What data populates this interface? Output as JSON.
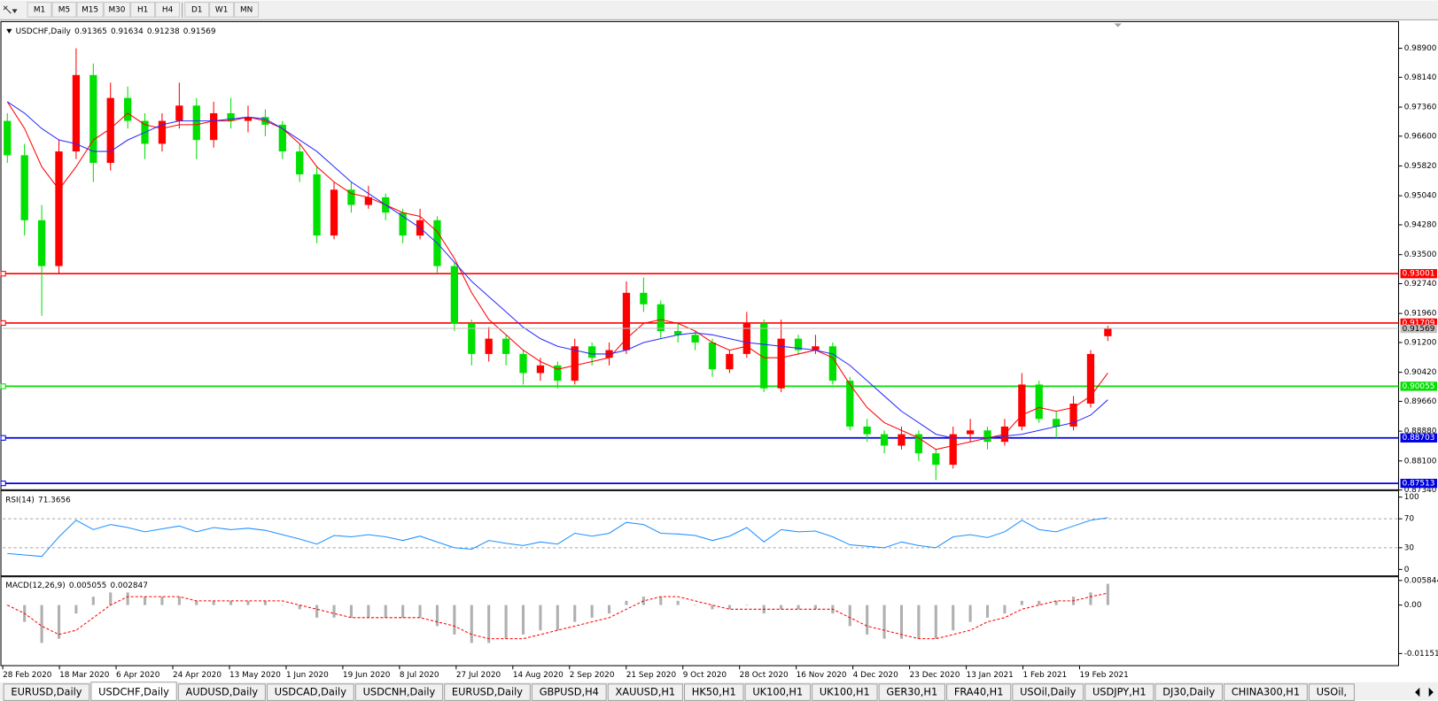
{
  "toolbar": [
    "M1",
    "M5",
    "M15",
    "M30",
    "H1",
    "H4",
    "D1",
    "W1",
    "MN"
  ],
  "tabs": [
    "EURUSD,Daily",
    "USDCHF,Daily",
    "AUDUSD,Daily",
    "USDCAD,Daily",
    "USDCNH,Daily",
    "EURUSD,Daily",
    "GBPUSD,H4",
    "XAUUSD,H1",
    "HK50,H1",
    "UK100,H1",
    "UK100,H1",
    "GER30,H1",
    "FRA40,H1",
    "USOil,Daily",
    "USDJPY,H1",
    "DJ30,Daily",
    "CHINA300,H1",
    "USOil,"
  ],
  "active_tab": 1,
  "chart_data": [
    {
      "type": "candlestick",
      "symbol": "USDCHF,Daily",
      "up_color": "#ff0000",
      "down_color": "#00e000",
      "ohlc": [
        [
          0.97,
          0.972,
          0.959,
          0.961
        ],
        [
          0.961,
          0.964,
          0.94,
          0.944
        ],
        [
          0.944,
          0.948,
          0.919,
          0.932
        ],
        [
          0.932,
          0.965,
          0.93,
          0.962
        ],
        [
          0.962,
          0.989,
          0.96,
          0.982
        ],
        [
          0.982,
          0.985,
          0.954,
          0.959
        ],
        [
          0.959,
          0.98,
          0.957,
          0.976
        ],
        [
          0.976,
          0.979,
          0.968,
          0.97
        ],
        [
          0.97,
          0.972,
          0.96,
          0.964
        ],
        [
          0.964,
          0.972,
          0.962,
          0.97
        ],
        [
          0.97,
          0.98,
          0.968,
          0.974
        ],
        [
          0.974,
          0.976,
          0.96,
          0.965
        ],
        [
          0.965,
          0.975,
          0.963,
          0.972
        ],
        [
          0.972,
          0.976,
          0.968,
          0.97
        ],
        [
          0.97,
          0.974,
          0.967,
          0.971
        ],
        [
          0.971,
          0.973,
          0.966,
          0.969
        ],
        [
          0.969,
          0.97,
          0.96,
          0.962
        ],
        [
          0.962,
          0.964,
          0.954,
          0.956
        ],
        [
          0.956,
          0.958,
          0.938,
          0.94
        ],
        [
          0.94,
          0.954,
          0.939,
          0.952
        ],
        [
          0.952,
          0.954,
          0.946,
          0.948
        ],
        [
          0.948,
          0.953,
          0.947,
          0.95
        ],
        [
          0.95,
          0.951,
          0.944,
          0.946
        ],
        [
          0.946,
          0.947,
          0.938,
          0.94
        ],
        [
          0.94,
          0.947,
          0.939,
          0.944
        ],
        [
          0.944,
          0.945,
          0.93,
          0.932
        ],
        [
          0.932,
          0.933,
          0.915,
          0.917
        ],
        [
          0.917,
          0.918,
          0.906,
          0.909
        ],
        [
          0.909,
          0.916,
          0.907,
          0.913
        ],
        [
          0.913,
          0.914,
          0.906,
          0.909
        ],
        [
          0.909,
          0.91,
          0.901,
          0.904
        ],
        [
          0.904,
          0.908,
          0.902,
          0.906
        ],
        [
          0.906,
          0.907,
          0.9,
          0.902
        ],
        [
          0.902,
          0.913,
          0.901,
          0.911
        ],
        [
          0.911,
          0.912,
          0.906,
          0.908
        ],
        [
          0.908,
          0.912,
          0.906,
          0.91
        ],
        [
          0.91,
          0.928,
          0.909,
          0.925
        ],
        [
          0.925,
          0.929,
          0.92,
          0.922
        ],
        [
          0.922,
          0.923,
          0.913,
          0.915
        ],
        [
          0.915,
          0.917,
          0.912,
          0.914
        ],
        [
          0.914,
          0.915,
          0.91,
          0.912
        ],
        [
          0.912,
          0.913,
          0.903,
          0.905
        ],
        [
          0.905,
          0.91,
          0.904,
          0.909
        ],
        [
          0.909,
          0.92,
          0.908,
          0.917
        ],
        [
          0.917,
          0.918,
          0.899,
          0.9
        ],
        [
          0.9,
          0.918,
          0.899,
          0.913
        ],
        [
          0.913,
          0.914,
          0.909,
          0.91
        ],
        [
          0.91,
          0.914,
          0.909,
          0.911
        ],
        [
          0.911,
          0.912,
          0.901,
          0.902
        ],
        [
          0.902,
          0.903,
          0.889,
          0.89
        ],
        [
          0.89,
          0.892,
          0.886,
          0.888
        ],
        [
          0.888,
          0.889,
          0.883,
          0.885
        ],
        [
          0.885,
          0.89,
          0.884,
          0.888
        ],
        [
          0.888,
          0.889,
          0.881,
          0.883
        ],
        [
          0.883,
          0.884,
          0.876,
          0.88
        ],
        [
          0.88,
          0.89,
          0.879,
          0.888
        ],
        [
          0.888,
          0.892,
          0.886,
          0.889
        ],
        [
          0.889,
          0.89,
          0.884,
          0.886
        ],
        [
          0.886,
          0.892,
          0.885,
          0.89
        ],
        [
          0.89,
          0.904,
          0.889,
          0.901
        ],
        [
          0.901,
          0.902,
          0.891,
          0.892
        ],
        [
          0.892,
          0.894,
          0.887,
          0.89
        ],
        [
          0.89,
          0.898,
          0.889,
          0.896
        ],
        [
          0.896,
          0.91,
          0.895,
          0.909
        ],
        [
          0.91365,
          0.91634,
          0.91238,
          0.91569
        ]
      ],
      "series": [
        {
          "color": "#ff0000",
          "values": [
            0.975,
            0.968,
            0.958,
            0.952,
            0.958,
            0.965,
            0.968,
            0.972,
            0.969,
            0.968,
            0.969,
            0.969,
            0.97,
            0.97,
            0.971,
            0.97,
            0.968,
            0.964,
            0.958,
            0.954,
            0.951,
            0.95,
            0.948,
            0.946,
            0.945,
            0.941,
            0.934,
            0.925,
            0.918,
            0.914,
            0.91,
            0.907,
            0.905,
            0.906,
            0.907,
            0.908,
            0.913,
            0.917,
            0.918,
            0.917,
            0.915,
            0.912,
            0.91,
            0.911,
            0.908,
            0.908,
            0.909,
            0.91,
            0.908,
            0.901,
            0.895,
            0.891,
            0.889,
            0.887,
            0.884,
            0.885,
            0.886,
            0.887,
            0.888,
            0.893,
            0.895,
            0.894,
            0.895,
            0.898,
            0.904
          ]
        },
        {
          "color": "#2a2aff",
          "values": [
            0.975,
            0.972,
            0.968,
            0.965,
            0.964,
            0.962,
            0.962,
            0.965,
            0.967,
            0.969,
            0.97,
            0.97,
            0.97,
            0.9705,
            0.971,
            0.9705,
            0.968,
            0.965,
            0.962,
            0.958,
            0.954,
            0.951,
            0.948,
            0.945,
            0.942,
            0.938,
            0.933,
            0.928,
            0.924,
            0.92,
            0.916,
            0.913,
            0.911,
            0.91,
            0.909,
            0.909,
            0.91,
            0.912,
            0.913,
            0.914,
            0.9145,
            0.914,
            0.913,
            0.912,
            0.9115,
            0.911,
            0.9105,
            0.91,
            0.909,
            0.906,
            0.902,
            0.898,
            0.894,
            0.891,
            0.888,
            0.887,
            0.887,
            0.887,
            0.8875,
            0.888,
            0.889,
            0.89,
            0.891,
            0.893,
            0.897
          ]
        }
      ],
      "ylim": [
        0.8737,
        0.9955
      ],
      "yticks": [
        {
          "value": 0.989,
          "label": "0.98900"
        },
        {
          "value": 0.9814,
          "label": "0.98140"
        },
        {
          "value": 0.9736,
          "label": "0.97360"
        },
        {
          "value": 0.966,
          "label": "0.96600"
        },
        {
          "value": 0.9582,
          "label": "0.95820"
        },
        {
          "value": 0.9504,
          "label": "0.95040"
        },
        {
          "value": 0.9428,
          "label": "0.94280"
        },
        {
          "value": 0.935,
          "label": "0.93500"
        },
        {
          "value": 0.9274,
          "label": "0.92740"
        },
        {
          "value": 0.9196,
          "label": "0.91960"
        },
        {
          "value": 0.912,
          "label": "0.91200"
        },
        {
          "value": 0.9042,
          "label": "0.90420"
        },
        {
          "value": 0.8966,
          "label": "0.89660"
        },
        {
          "value": 0.8888,
          "label": "0.88880"
        },
        {
          "value": 0.881,
          "label": "0.88100"
        },
        {
          "value": 0.8734,
          "label": "0.87340"
        }
      ],
      "levels": [
        {
          "value": 0.93001,
          "color": "#ff0000"
        },
        {
          "value": 0.91709,
          "color": "#ff0000"
        },
        {
          "value": 0.90055,
          "color": "#00e000"
        },
        {
          "value": 0.88703,
          "color": "#0000e0"
        },
        {
          "value": 0.87513,
          "color": "#0000e0"
        }
      ],
      "x_labels": [
        "28 Feb 2020",
        "18 Mar 2020",
        "6 Apr 2020",
        "24 Apr 2020",
        "13 May 2020",
        "1 Jun 2020",
        "19 Jun 2020",
        "8 Jul 2020",
        "27 Jul 2020",
        "14 Aug 2020",
        "2 Sep 2020",
        "21 Sep 2020",
        "9 Oct 2020",
        "28 Oct 2020",
        "16 Nov 2020",
        "4 Dec 2020",
        "23 Dec 2020",
        "13 Jan 2021",
        "1 Feb 2021",
        "19 Feb 2021"
      ]
    },
    {
      "type": "line",
      "title": "RSI(14)",
      "color": "#1e90ff",
      "values": [
        22,
        20,
        18,
        45,
        68,
        55,
        62,
        58,
        52,
        56,
        60,
        52,
        58,
        55,
        57,
        54,
        48,
        42,
        35,
        47,
        45,
        48,
        45,
        40,
        46,
        38,
        30,
        28,
        40,
        36,
        33,
        38,
        35,
        50,
        46,
        50,
        65,
        62,
        50,
        49,
        47,
        40,
        46,
        58,
        38,
        55,
        52,
        53,
        45,
        34,
        32,
        30,
        38,
        33,
        30,
        45,
        48,
        44,
        52,
        68,
        55,
        52,
        60,
        68,
        71.3656
      ],
      "ylim": [
        -8.9,
        107.6
      ],
      "yticks": [
        0,
        30,
        70,
        100
      ],
      "levels": [
        30,
        70
      ]
    },
    {
      "type": "macd",
      "title": "MACD(12,26,9)",
      "hist_color": "#b0b0b0",
      "signal_color": "#ff0000",
      "histogram": [
        0,
        -0.004,
        -0.009,
        -0.008,
        -0.002,
        0.002,
        0.003,
        0.003,
        0.002,
        0.002,
        0.002,
        0.001,
        0.001,
        0.001,
        0.001,
        0.001,
        0,
        -0.001,
        -0.003,
        -0.003,
        -0.003,
        -0.003,
        -0.003,
        -0.003,
        -0.003,
        -0.005,
        -0.007,
        -0.009,
        -0.009,
        -0.008,
        -0.007,
        -0.006,
        -0.006,
        -0.004,
        -0.003,
        -0.002,
        0.001,
        0.002,
        0.002,
        0.001,
        0,
        -0.001,
        -0.001,
        0,
        -0.002,
        -0.001,
        -0.001,
        -0.001,
        -0.002,
        -0.005,
        -0.007,
        -0.008,
        -0.008,
        -0.008,
        -0.008,
        -0.006,
        -0.004,
        -0.003,
        -0.002,
        0.001,
        0.001,
        0.001,
        0.002,
        0.003,
        0.005055
      ],
      "signal": [
        0,
        -0.002,
        -0.005,
        -0.007,
        -0.006,
        -0.003,
        0,
        0.002,
        0.002,
        0.002,
        0.002,
        0.001,
        0.001,
        0.001,
        0.001,
        0.001,
        0.001,
        0,
        -0.001,
        -0.002,
        -0.003,
        -0.003,
        -0.003,
        -0.003,
        -0.003,
        -0.004,
        -0.005,
        -0.007,
        -0.008,
        -0.008,
        -0.008,
        -0.007,
        -0.006,
        -0.005,
        -0.004,
        -0.003,
        -0.001,
        0.001,
        0.002,
        0.002,
        0.001,
        0,
        -0.001,
        -0.001,
        -0.001,
        -0.001,
        -0.001,
        -0.001,
        -0.001,
        -0.003,
        -0.005,
        -0.006,
        -0.007,
        -0.008,
        -0.008,
        -0.007,
        -0.006,
        -0.004,
        -0.003,
        -0.001,
        0,
        0.001,
        0.001,
        0.002,
        0.002847
      ],
      "ylim": [
        -0.0144,
        0.0065
      ],
      "yticks": [
        0.005844,
        {
          "value": 0,
          "label": "0.00"
        },
        -0.011516
      ]
    }
  ]
}
